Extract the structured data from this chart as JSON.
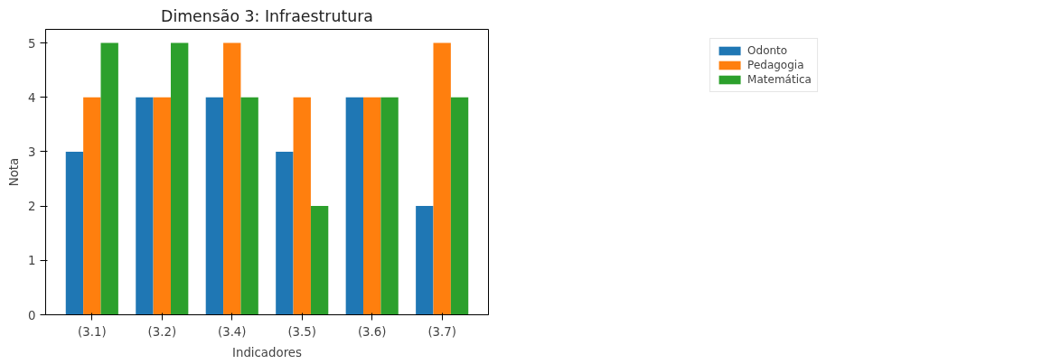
{
  "chart_data": {
    "type": "bar",
    "title": "Dimensão 3: Infraestrutura",
    "xlabel": "Indicadores",
    "ylabel": "Nota",
    "categories": [
      "(3.1)",
      "(3.2)",
      "(3.4)",
      "(3.5)",
      "(3.6)",
      "(3.7)"
    ],
    "series": [
      {
        "name": "Odonto",
        "color": "#1f77b4",
        "values": [
          3,
          4,
          4,
          3,
          4,
          2
        ]
      },
      {
        "name": "Pedagogia",
        "color": "#ff7f0e",
        "values": [
          4,
          4,
          5,
          4,
          4,
          5
        ]
      },
      {
        "name": "Matemática",
        "color": "#2ca02c",
        "values": [
          5,
          5,
          4,
          2,
          4,
          4
        ]
      }
    ],
    "ylim": [
      0,
      5.25
    ],
    "yticks": [
      0,
      1,
      2,
      3,
      4,
      5
    ],
    "grid": false,
    "legend": "top right"
  }
}
